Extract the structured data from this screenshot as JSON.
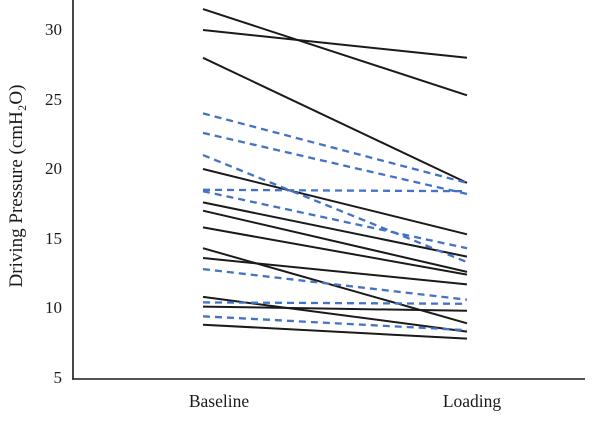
{
  "chart_data": {
    "type": "line",
    "subtype": "paired-slope-chart",
    "title": "",
    "ylabel": "Driving Pressure (cmH₂O)",
    "xlabel": "",
    "categories": [
      "Baseline",
      "Loading"
    ],
    "ylim": [
      5,
      32.5
    ],
    "yticks": [
      30,
      25,
      20,
      15,
      10,
      5
    ],
    "grid": false,
    "legend": "none",
    "axis_color": "#1a1a1a",
    "line_groups": [
      {
        "name": "solid-black-patient",
        "color": "#1a1a1a",
        "style": "solid",
        "stroke_width": 2,
        "pairs": [
          [
            31.5,
            25.3
          ],
          [
            30.0,
            28.0
          ],
          [
            28.0,
            19.0
          ],
          [
            20.0,
            15.3
          ],
          [
            17.6,
            13.7
          ],
          [
            17.0,
            12.6
          ],
          [
            15.8,
            12.4
          ],
          [
            14.3,
            8.9
          ],
          [
            13.6,
            11.7
          ],
          [
            10.8,
            8.3
          ],
          [
            10.1,
            9.8
          ],
          [
            8.8,
            7.8
          ]
        ]
      },
      {
        "name": "dashed-blue-patient",
        "color": "#4472c4",
        "style": "dashed",
        "stroke_width": 2.3,
        "dash_pattern": "7 5",
        "pairs": [
          [
            24.0,
            19.0
          ],
          [
            22.6,
            18.2
          ],
          [
            21.0,
            13.3
          ],
          [
            18.5,
            18.4
          ],
          [
            18.4,
            14.3
          ],
          [
            12.8,
            10.6
          ],
          [
            10.4,
            10.3
          ],
          [
            9.4,
            8.4
          ]
        ]
      }
    ]
  }
}
